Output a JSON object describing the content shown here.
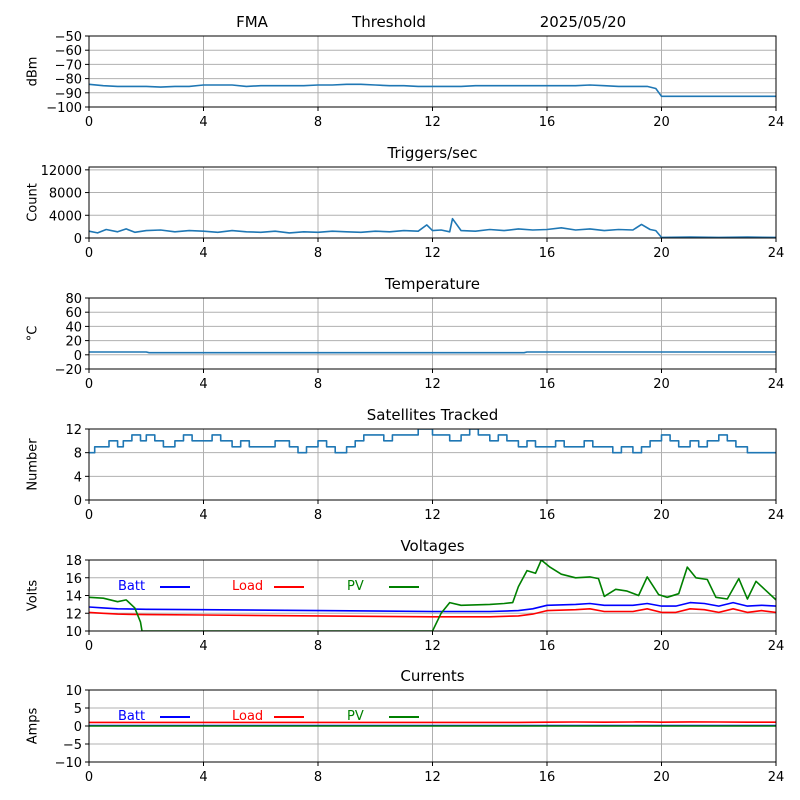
{
  "header": {
    "left": "FMA",
    "center": "Threshold",
    "right": "2025/05/20"
  },
  "colors": {
    "main": "#1f77b4",
    "batt": "#0000ff",
    "load": "#ff0000",
    "pv": "#008000",
    "grid": "#b0b0b0"
  },
  "chart_data": [
    {
      "type": "line",
      "title": "",
      "ylabel": "dBm",
      "xlim": [
        0,
        24
      ],
      "ylim": [
        -100,
        -50
      ],
      "xticks": [
        "0",
        "4",
        "8",
        "12",
        "16",
        "20",
        "24"
      ],
      "yticks": [
        "−100",
        "−90",
        "−80",
        "−70",
        "−60",
        "−50"
      ],
      "grid": true,
      "series": [
        {
          "color": "main",
          "x": [
            0,
            0.5,
            1,
            1.5,
            2,
            2.5,
            3,
            3.5,
            4,
            4.5,
            5,
            5.5,
            6,
            6.5,
            7,
            7.5,
            8,
            8.5,
            9,
            9.5,
            10,
            10.5,
            11,
            11.5,
            12,
            12.5,
            13,
            13.5,
            14,
            14.5,
            15,
            15.5,
            16,
            16.5,
            17,
            17.5,
            18,
            18.5,
            19,
            19.5,
            19.8,
            20,
            22,
            24
          ],
          "y": [
            -84,
            -85,
            -85.5,
            -85.5,
            -85.5,
            -86,
            -85.5,
            -85.5,
            -84.5,
            -84.5,
            -84.5,
            -85.5,
            -85,
            -85,
            -85,
            -85,
            -84.5,
            -84.5,
            -84,
            -84,
            -84.5,
            -85,
            -85,
            -85.5,
            -85.5,
            -85.5,
            -85.5,
            -85,
            -85,
            -85,
            -85,
            -85,
            -85,
            -85,
            -85,
            -84.5,
            -85,
            -85.5,
            -85.5,
            -85.5,
            -87,
            -92.5,
            -92.5,
            -92.5
          ]
        }
      ]
    },
    {
      "type": "line",
      "title": "Triggers/sec",
      "ylabel": "Count",
      "xlim": [
        0,
        24
      ],
      "ylim": [
        0,
        12500
      ],
      "xticks": [
        "0",
        "4",
        "8",
        "12",
        "16",
        "20",
        "24"
      ],
      "yticks": [
        "0",
        "4000",
        "8000",
        "12000"
      ],
      "ytick_values": [
        0,
        4000,
        8000,
        12000
      ],
      "grid": true,
      "series": [
        {
          "color": "main",
          "x": [
            0,
            0.3,
            0.6,
            1,
            1.3,
            1.6,
            2,
            2.5,
            3,
            3.5,
            4,
            4.5,
            5,
            5.5,
            6,
            6.5,
            7,
            7.5,
            8,
            8.5,
            9,
            9.5,
            10,
            10.5,
            11,
            11.5,
            11.8,
            12,
            12.3,
            12.6,
            12.7,
            13,
            13.5,
            14,
            14.5,
            15,
            15.5,
            16,
            16.5,
            17,
            17.5,
            18,
            18.5,
            19,
            19.3,
            19.6,
            19.8,
            20,
            21,
            22,
            23,
            24
          ],
          "y": [
            1200,
            900,
            1500,
            1100,
            1600,
            1000,
            1300,
            1400,
            1100,
            1300,
            1200,
            1000,
            1300,
            1100,
            1000,
            1200,
            900,
            1100,
            1000,
            1200,
            1100,
            1000,
            1200,
            1100,
            1300,
            1200,
            2300,
            1300,
            1400,
            1100,
            3400,
            1300,
            1200,
            1500,
            1300,
            1600,
            1400,
            1500,
            1800,
            1400,
            1600,
            1300,
            1500,
            1400,
            2400,
            1500,
            1300,
            100,
            150,
            100,
            150,
            100
          ]
        }
      ]
    },
    {
      "type": "line",
      "title": "Temperature",
      "ylabel": "°C",
      "xlim": [
        0,
        24
      ],
      "ylim": [
        -20,
        80
      ],
      "xticks": [
        "0",
        "4",
        "8",
        "12",
        "16",
        "20",
        "24"
      ],
      "yticks": [
        "−20",
        "0",
        "20",
        "40",
        "60",
        "80"
      ],
      "grid": true,
      "series": [
        {
          "color": "main",
          "x": [
            0,
            2,
            2.1,
            15.2,
            15.3,
            24
          ],
          "y": [
            4,
            4,
            3,
            3,
            4,
            4
          ]
        }
      ]
    },
    {
      "type": "line",
      "title": "Satellites Tracked",
      "ylabel": "Number",
      "xlim": [
        0,
        24
      ],
      "ylim": [
        0,
        12
      ],
      "xticks": [
        "0",
        "4",
        "8",
        "12",
        "16",
        "20",
        "24"
      ],
      "yticks": [
        "0",
        "4",
        "8",
        "12"
      ],
      "grid": true,
      "step": true,
      "series": [
        {
          "color": "main",
          "x": [
            0,
            0.2,
            0.5,
            0.7,
            1,
            1.2,
            1.5,
            1.8,
            2,
            2.3,
            2.6,
            3,
            3.3,
            3.6,
            4,
            4.3,
            4.6,
            5,
            5.3,
            5.6,
            6,
            6.5,
            7,
            7.3,
            7.6,
            8,
            8.3,
            8.6,
            9,
            9.3,
            9.6,
            10,
            10.3,
            10.6,
            11,
            11.5,
            12,
            12.3,
            12.6,
            13,
            13.3,
            13.6,
            14,
            14.3,
            14.6,
            15,
            15.3,
            15.6,
            16,
            16.3,
            16.6,
            17,
            17.3,
            17.6,
            18,
            18.3,
            18.6,
            19,
            19.3,
            19.6,
            20,
            20.3,
            20.6,
            21,
            21.3,
            21.6,
            22,
            22.3,
            22.6,
            23,
            23.5,
            24
          ],
          "y": [
            8,
            9,
            9,
            10,
            9,
            10,
            11,
            10,
            11,
            10,
            9,
            10,
            11,
            10,
            10,
            11,
            10,
            9,
            10,
            9,
            9,
            10,
            9,
            8,
            9,
            10,
            9,
            8,
            9,
            10,
            11,
            11,
            10,
            11,
            11,
            12,
            11,
            11,
            10,
            11,
            12,
            11,
            10,
            11,
            10,
            9,
            10,
            9,
            9,
            10,
            9,
            9,
            10,
            9,
            9,
            8,
            9,
            8,
            9,
            10,
            11,
            10,
            9,
            10,
            9,
            10,
            11,
            10,
            9,
            8,
            8,
            8
          ]
        }
      ]
    },
    {
      "type": "line",
      "title": "Voltages",
      "ylabel": "Volts",
      "xlim": [
        0,
        24
      ],
      "ylim": [
        10,
        18
      ],
      "xticks": [
        "0",
        "4",
        "8",
        "12",
        "16",
        "20",
        "24"
      ],
      "yticks": [
        "10",
        "12",
        "14",
        "16",
        "18"
      ],
      "grid": true,
      "legend": [
        "Batt",
        "Load",
        "PV"
      ],
      "series": [
        {
          "name": "Batt",
          "color": "batt",
          "x": [
            0,
            0.5,
            1,
            2,
            4,
            8,
            12,
            14,
            15,
            15.5,
            16,
            17,
            17.5,
            18,
            19,
            19.5,
            20,
            20.5,
            21,
            21.5,
            22,
            22.5,
            23,
            23.5,
            24
          ],
          "y": [
            12.7,
            12.6,
            12.5,
            12.45,
            12.4,
            12.3,
            12.2,
            12.2,
            12.3,
            12.5,
            12.9,
            13.0,
            13.1,
            12.9,
            12.9,
            13.1,
            12.8,
            12.8,
            13.2,
            13.1,
            12.8,
            13.2,
            12.8,
            12.9,
            12.8
          ]
        },
        {
          "name": "Load",
          "color": "load",
          "x": [
            0,
            0.5,
            1,
            2,
            4,
            8,
            12,
            14,
            15,
            15.5,
            16,
            17,
            17.5,
            18,
            19,
            19.5,
            20,
            20.5,
            21,
            21.5,
            22,
            22.5,
            23,
            23.5,
            24
          ],
          "y": [
            12.1,
            12.0,
            11.9,
            11.85,
            11.8,
            11.7,
            11.6,
            11.6,
            11.7,
            11.9,
            12.3,
            12.4,
            12.5,
            12.2,
            12.2,
            12.5,
            12.1,
            12.1,
            12.5,
            12.4,
            12.1,
            12.5,
            12.1,
            12.3,
            12.1
          ]
        },
        {
          "name": "PV",
          "color": "pv",
          "x": [
            0,
            0.5,
            1,
            1.3,
            1.6,
            1.8,
            1.85,
            12,
            12.3,
            12.6,
            13,
            14,
            14.5,
            14.8,
            15,
            15.3,
            15.6,
            15.8,
            16.1,
            16.5,
            17,
            17.5,
            17.8,
            18,
            18.4,
            18.8,
            19.2,
            19.5,
            19.9,
            20.2,
            20.6,
            20.9,
            21.2,
            21.6,
            21.9,
            22.3,
            22.7,
            23,
            23.3,
            23.6,
            24
          ],
          "y": [
            13.8,
            13.7,
            13.3,
            13.5,
            12.6,
            11.0,
            10.0,
            10.0,
            12.0,
            13.2,
            12.9,
            13.0,
            13.1,
            13.2,
            15.0,
            16.8,
            16.5,
            18.0,
            17.2,
            16.4,
            16.0,
            16.1,
            15.9,
            13.9,
            14.7,
            14.5,
            14.0,
            16.1,
            14.1,
            13.8,
            14.2,
            17.2,
            16.0,
            15.8,
            13.8,
            13.6,
            15.9,
            13.6,
            15.6,
            14.7,
            13.5
          ]
        }
      ]
    },
    {
      "type": "line",
      "title": "Currents",
      "ylabel": "Amps",
      "xlim": [
        0,
        24
      ],
      "ylim": [
        -10,
        10
      ],
      "xticks": [
        "0",
        "4",
        "8",
        "12",
        "16",
        "20",
        "24"
      ],
      "yticks": [
        "−10",
        "−5",
        "0",
        "5",
        "10"
      ],
      "grid": true,
      "legend": [
        "Batt",
        "Load",
        "PV"
      ],
      "series": [
        {
          "name": "Batt",
          "color": "batt",
          "x": [
            0,
            24
          ],
          "y": [
            0.1,
            0.1
          ]
        },
        {
          "name": "Load",
          "color": "load",
          "x": [
            0,
            4,
            8,
            12,
            15,
            16,
            17,
            18,
            19,
            19.5,
            20,
            21,
            22,
            23,
            24
          ],
          "y": [
            1.0,
            1.0,
            1.0,
            1.0,
            1.0,
            1.05,
            1.1,
            1.05,
            1.1,
            1.15,
            1.05,
            1.15,
            1.1,
            1.05,
            1.05
          ]
        },
        {
          "name": "PV",
          "color": "pv",
          "x": [
            0,
            24
          ],
          "y": [
            0.0,
            0.0
          ]
        }
      ]
    }
  ]
}
